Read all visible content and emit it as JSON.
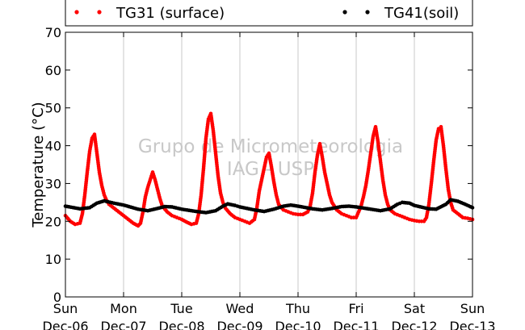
{
  "chart_data": {
    "type": "scatter",
    "title": "",
    "xlabel": "",
    "ylabel": "Temperature (°C)",
    "ylim": [
      0,
      70
    ],
    "yticks": [
      0,
      10,
      20,
      30,
      40,
      50,
      60,
      70
    ],
    "xlim": [
      "2020-12-06T00:00",
      "2020-12-13T00:00"
    ],
    "xticks": [
      {
        "day": "Sun",
        "date": "Dec-06"
      },
      {
        "day": "Mon",
        "date": "Dec-07"
      },
      {
        "day": "Tue",
        "date": "Dec-08"
      },
      {
        "day": "Wed",
        "date": "Dec-09"
      },
      {
        "day": "Thu",
        "date": "Dec-10"
      },
      {
        "day": "Fri",
        "date": "Dec-11"
      },
      {
        "day": "Sat",
        "date": "Dec-12"
      },
      {
        "day": "Sun",
        "date": "Dec-13"
      }
    ],
    "grid": true,
    "legend_position": "top",
    "watermark": [
      "Grupo de Micrometeorologia",
      "IAG - USP"
    ],
    "series": [
      {
        "name": "TG31 (surface)",
        "color": "#ff0000",
        "points": [
          [
            "2020-12-06T00:00",
            21.5
          ],
          [
            "2020-12-06T02:00",
            20.0
          ],
          [
            "2020-12-06T04:00",
            19.2
          ],
          [
            "2020-12-06T06:00",
            19.5
          ],
          [
            "2020-12-06T07:00",
            22.0
          ],
          [
            "2020-12-06T08:00",
            27.0
          ],
          [
            "2020-12-06T09:00",
            33.0
          ],
          [
            "2020-12-06T10:00",
            38.5
          ],
          [
            "2020-12-06T11:00",
            42.0
          ],
          [
            "2020-12-06T12:00",
            43.0
          ],
          [
            "2020-12-06T13:00",
            38.0
          ],
          [
            "2020-12-06T14:00",
            33.0
          ],
          [
            "2020-12-06T15:00",
            29.5
          ],
          [
            "2020-12-06T16:00",
            27.0
          ],
          [
            "2020-12-06T17:00",
            25.5
          ],
          [
            "2020-12-06T18:00",
            24.5
          ],
          [
            "2020-12-06T20:00",
            23.5
          ],
          [
            "2020-12-06T22:00",
            22.5
          ],
          [
            "2020-12-07T00:00",
            21.5
          ],
          [
            "2020-12-07T02:00",
            20.5
          ],
          [
            "2020-12-07T04:00",
            19.5
          ],
          [
            "2020-12-07T06:00",
            18.8
          ],
          [
            "2020-12-07T07:00",
            19.5
          ],
          [
            "2020-12-07T08:00",
            22.5
          ],
          [
            "2020-12-07T09:00",
            26.5
          ],
          [
            "2020-12-07T10:00",
            29.0
          ],
          [
            "2020-12-07T11:00",
            31.0
          ],
          [
            "2020-12-07T12:00",
            33.0
          ],
          [
            "2020-12-07T13:00",
            31.0
          ],
          [
            "2020-12-07T14:00",
            28.5
          ],
          [
            "2020-12-07T15:00",
            26.0
          ],
          [
            "2020-12-07T16:00",
            24.0
          ],
          [
            "2020-12-07T18:00",
            22.5
          ],
          [
            "2020-12-07T20:00",
            21.5
          ],
          [
            "2020-12-07T22:00",
            21.0
          ],
          [
            "2020-12-08T00:00",
            20.5
          ],
          [
            "2020-12-08T02:00",
            19.8
          ],
          [
            "2020-12-08T04:00",
            19.2
          ],
          [
            "2020-12-08T06:00",
            19.5
          ],
          [
            "2020-12-08T07:00",
            22.0
          ],
          [
            "2020-12-08T08:00",
            27.0
          ],
          [
            "2020-12-08T09:00",
            34.0
          ],
          [
            "2020-12-08T10:00",
            42.0
          ],
          [
            "2020-12-08T11:00",
            47.0
          ],
          [
            "2020-12-08T12:00",
            48.5
          ],
          [
            "2020-12-08T13:00",
            44.0
          ],
          [
            "2020-12-08T14:00",
            38.0
          ],
          [
            "2020-12-08T15:00",
            32.0
          ],
          [
            "2020-12-08T16:00",
            27.5
          ],
          [
            "2020-12-08T17:00",
            25.0
          ],
          [
            "2020-12-08T18:00",
            23.5
          ],
          [
            "2020-12-08T20:00",
            22.0
          ],
          [
            "2020-12-08T22:00",
            21.0
          ],
          [
            "2020-12-09T00:00",
            20.5
          ],
          [
            "2020-12-09T02:00",
            20.0
          ],
          [
            "2020-12-09T04:00",
            19.5
          ],
          [
            "2020-12-09T06:00",
            20.5
          ],
          [
            "2020-12-09T07:00",
            23.5
          ],
          [
            "2020-12-09T08:00",
            28.0
          ],
          [
            "2020-12-09T09:00",
            31.0
          ],
          [
            "2020-12-09T10:00",
            34.0
          ],
          [
            "2020-12-09T11:00",
            37.0
          ],
          [
            "2020-12-09T12:00",
            38.0
          ],
          [
            "2020-12-09T13:00",
            34.5
          ],
          [
            "2020-12-09T14:00",
            30.5
          ],
          [
            "2020-12-09T15:00",
            27.0
          ],
          [
            "2020-12-09T16:00",
            24.5
          ],
          [
            "2020-12-09T18:00",
            23.0
          ],
          [
            "2020-12-09T20:00",
            22.5
          ],
          [
            "2020-12-09T22:00",
            22.0
          ],
          [
            "2020-12-10T00:00",
            21.8
          ],
          [
            "2020-12-10T02:00",
            21.8
          ],
          [
            "2020-12-10T04:00",
            22.5
          ],
          [
            "2020-12-10T05:00",
            24.0
          ],
          [
            "2020-12-10T06:00",
            27.5
          ],
          [
            "2020-12-10T07:00",
            33.0
          ],
          [
            "2020-12-10T08:00",
            37.5
          ],
          [
            "2020-12-10T09:00",
            40.5
          ],
          [
            "2020-12-10T10:00",
            37.0
          ],
          [
            "2020-12-10T11:00",
            33.0
          ],
          [
            "2020-12-10T12:00",
            30.0
          ],
          [
            "2020-12-10T13:00",
            27.0
          ],
          [
            "2020-12-10T14:00",
            25.0
          ],
          [
            "2020-12-10T16:00",
            23.0
          ],
          [
            "2020-12-10T18:00",
            22.0
          ],
          [
            "2020-12-10T20:00",
            21.5
          ],
          [
            "2020-12-10T22:00",
            21.0
          ],
          [
            "2020-12-11T00:00",
            21.0
          ],
          [
            "2020-12-11T01:00",
            22.5
          ],
          [
            "2020-12-11T02:00",
            24.0
          ],
          [
            "2020-12-11T03:00",
            26.5
          ],
          [
            "2020-12-11T04:00",
            29.5
          ],
          [
            "2020-12-11T05:00",
            33.5
          ],
          [
            "2020-12-11T06:00",
            38.0
          ],
          [
            "2020-12-11T07:00",
            42.5
          ],
          [
            "2020-12-11T08:00",
            45.0
          ],
          [
            "2020-12-11T09:00",
            41.0
          ],
          [
            "2020-12-11T10:00",
            36.0
          ],
          [
            "2020-12-11T11:00",
            31.0
          ],
          [
            "2020-12-11T12:00",
            27.0
          ],
          [
            "2020-12-11T13:00",
            24.5
          ],
          [
            "2020-12-11T14:00",
            23.0
          ],
          [
            "2020-12-11T16:00",
            22.0
          ],
          [
            "2020-12-11T18:00",
            21.5
          ],
          [
            "2020-12-11T20:00",
            21.0
          ],
          [
            "2020-12-11T22:00",
            20.5
          ],
          [
            "2020-12-12T00:00",
            20.2
          ],
          [
            "2020-12-12T02:00",
            20.0
          ],
          [
            "2020-12-12T04:00",
            20.0
          ],
          [
            "2020-12-12T05:00",
            21.0
          ],
          [
            "2020-12-12T06:00",
            24.5
          ],
          [
            "2020-12-12T07:00",
            30.0
          ],
          [
            "2020-12-12T08:00",
            36.0
          ],
          [
            "2020-12-12T09:00",
            41.5
          ],
          [
            "2020-12-12T10:00",
            44.5
          ],
          [
            "2020-12-12T11:00",
            45.0
          ],
          [
            "2020-12-12T12:00",
            40.0
          ],
          [
            "2020-12-12T13:00",
            34.0
          ],
          [
            "2020-12-12T14:00",
            28.5
          ],
          [
            "2020-12-12T15:00",
            25.0
          ],
          [
            "2020-12-12T16:00",
            23.0
          ],
          [
            "2020-12-12T18:00",
            22.0
          ],
          [
            "2020-12-12T20:00",
            21.0
          ],
          [
            "2020-12-12T22:00",
            20.8
          ],
          [
            "2020-12-13T00:00",
            20.5
          ]
        ]
      },
      {
        "name": "TG41(soil)",
        "color": "#000000",
        "points": [
          [
            "2020-12-06T00:00",
            24.0
          ],
          [
            "2020-12-06T06:00",
            23.3
          ],
          [
            "2020-12-06T10:00",
            23.6
          ],
          [
            "2020-12-06T13:00",
            24.8
          ],
          [
            "2020-12-06T16:00",
            25.4
          ],
          [
            "2020-12-06T20:00",
            24.8
          ],
          [
            "2020-12-07T00:00",
            24.3
          ],
          [
            "2020-12-07T06:00",
            23.2
          ],
          [
            "2020-12-07T10:00",
            22.8
          ],
          [
            "2020-12-07T14:00",
            23.4
          ],
          [
            "2020-12-07T17:00",
            23.9
          ],
          [
            "2020-12-07T20:00",
            23.8
          ],
          [
            "2020-12-08T00:00",
            23.2
          ],
          [
            "2020-12-08T06:00",
            22.6
          ],
          [
            "2020-12-08T10:00",
            22.3
          ],
          [
            "2020-12-08T14:00",
            22.8
          ],
          [
            "2020-12-08T17:00",
            24.0
          ],
          [
            "2020-12-08T19:00",
            24.6
          ],
          [
            "2020-12-08T22:00",
            24.2
          ],
          [
            "2020-12-09T00:00",
            23.8
          ],
          [
            "2020-12-09T06:00",
            23.0
          ],
          [
            "2020-12-09T10:00",
            22.6
          ],
          [
            "2020-12-09T14:00",
            23.2
          ],
          [
            "2020-12-09T18:00",
            24.0
          ],
          [
            "2020-12-09T21:00",
            24.3
          ],
          [
            "2020-12-10T00:00",
            24.0
          ],
          [
            "2020-12-10T06:00",
            23.3
          ],
          [
            "2020-12-10T10:00",
            23.0
          ],
          [
            "2020-12-10T14:00",
            23.4
          ],
          [
            "2020-12-10T18:00",
            23.9
          ],
          [
            "2020-12-10T21:00",
            24.0
          ],
          [
            "2020-12-11T00:00",
            23.8
          ],
          [
            "2020-12-11T06:00",
            23.2
          ],
          [
            "2020-12-11T10:00",
            22.8
          ],
          [
            "2020-12-11T14:00",
            23.3
          ],
          [
            "2020-12-11T17:00",
            24.5
          ],
          [
            "2020-12-11T19:00",
            25.0
          ],
          [
            "2020-12-11T22:00",
            24.8
          ],
          [
            "2020-12-12T00:00",
            24.2
          ],
          [
            "2020-12-12T06:00",
            23.3
          ],
          [
            "2020-12-12T09:00",
            23.2
          ],
          [
            "2020-12-12T13:00",
            24.5
          ],
          [
            "2020-12-12T15:00",
            25.7
          ],
          [
            "2020-12-12T18:00",
            25.3
          ],
          [
            "2020-12-12T21:00",
            24.5
          ],
          [
            "2020-12-13T00:00",
            23.6
          ]
        ]
      }
    ]
  }
}
